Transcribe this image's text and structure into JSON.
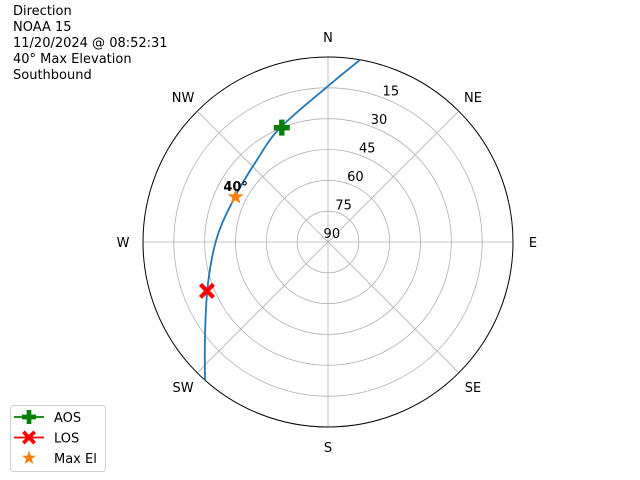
{
  "title_lines": [
    "Direction",
    "NOAA 15",
    "11/20/2024 @ 08:52:31",
    "40° Max Elevation",
    "Southbound"
  ],
  "chart_data": {
    "type": "polar-line",
    "theta_direction": "clockwise",
    "theta_zero": "N",
    "direction_labels": [
      {
        "label": "N",
        "az": 0
      },
      {
        "label": "NE",
        "az": 45
      },
      {
        "label": "E",
        "az": 90
      },
      {
        "label": "SE",
        "az": 135
      },
      {
        "label": "S",
        "az": 180
      },
      {
        "label": "SW",
        "az": 225
      },
      {
        "label": "W",
        "az": 270
      },
      {
        "label": "NW",
        "az": 315
      }
    ],
    "elevation_ticks": [
      90,
      75,
      60,
      45,
      30,
      15
    ],
    "elevation_range": [
      0,
      90
    ],
    "grid": true,
    "track": {
      "color": "#1f77b4",
      "points": [
        {
          "az": 10.0,
          "el": 0
        },
        {
          "az": 359.6,
          "el": 14.6
        },
        {
          "az": 337.2,
          "el": 29.8
        },
        {
          "az": 319.1,
          "el": 37.2
        },
        {
          "az": 295.8,
          "el": 39.7
        },
        {
          "az": 272.6,
          "el": 36.0
        },
        {
          "az": 251.1,
          "el": 28.3
        },
        {
          "az": 233.5,
          "el": 15.6
        },
        {
          "az": 221.7,
          "el": 0
        }
      ]
    },
    "markers": [
      {
        "name": "AOS",
        "az": 338,
        "el": 30,
        "color": "#008000",
        "symbol": "plus"
      },
      {
        "name": "LOS",
        "az": 248,
        "el": 26.5,
        "color": "#ff0000",
        "symbol": "x"
      },
      {
        "name": "Max El",
        "az": 296,
        "el": 40,
        "color": "#ff7f0e",
        "symbol": "star"
      }
    ],
    "annotation": {
      "text": "40°",
      "az": 296,
      "el": 40
    },
    "legend": {
      "placement": "bottom-left",
      "entries": [
        "AOS",
        "LOS",
        "Max El"
      ]
    }
  }
}
